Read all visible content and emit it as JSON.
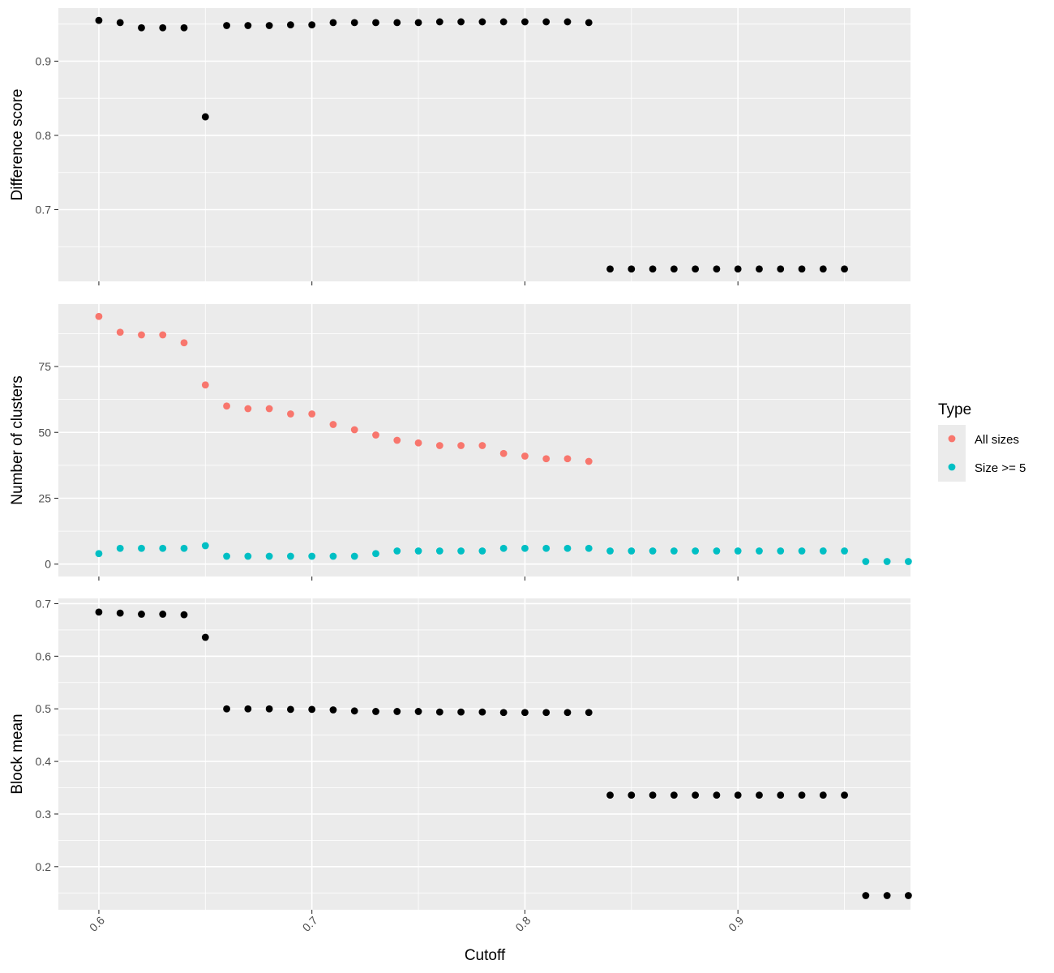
{
  "chart_data": {
    "type": "scatter",
    "x_label": "Cutoff",
    "x_ticks": [
      "0.6",
      "0.7",
      "0.8",
      "0.9"
    ],
    "x_range": [
      0.581,
      0.981
    ],
    "legend": {
      "title": "Type",
      "position": "right",
      "entries": [
        {
          "label": "All sizes",
          "color": "#F8766D"
        },
        {
          "label": "Size >= 5",
          "color": "#00BFC4"
        }
      ]
    },
    "panels": [
      {
        "y_label": "Difference score",
        "y_range": [
          0.6033,
          0.9715
        ],
        "y_ticks": [
          "0.7",
          "0.8",
          "0.9"
        ],
        "series": [
          {
            "color": "#000000",
            "x": [
              0.6,
              0.61,
              0.62,
              0.63,
              0.64,
              0.65,
              0.66,
              0.67,
              0.68,
              0.69,
              0.7,
              0.71,
              0.72,
              0.73,
              0.74,
              0.75,
              0.76,
              0.77,
              0.78,
              0.79,
              0.8,
              0.81,
              0.82,
              0.83,
              0.84,
              0.85,
              0.86,
              0.87,
              0.88,
              0.89,
              0.9,
              0.91,
              0.92,
              0.93,
              0.94,
              0.95
            ],
            "y": [
              0.955,
              0.952,
              0.945,
              0.945,
              0.945,
              0.825,
              0.948,
              0.948,
              0.948,
              0.949,
              0.949,
              0.952,
              0.952,
              0.952,
              0.952,
              0.952,
              0.953,
              0.953,
              0.953,
              0.953,
              0.953,
              0.953,
              0.953,
              0.952,
              0.62,
              0.62,
              0.62,
              0.62,
              0.62,
              0.62,
              0.62,
              0.62,
              0.62,
              0.62,
              0.62,
              0.62
            ]
          }
        ]
      },
      {
        "y_label": "Number of clusters",
        "y_range": [
          -4.7,
          98.7
        ],
        "y_ticks": [
          "0",
          "25",
          "50",
          "75"
        ],
        "series": [
          {
            "name": "All sizes",
            "color": "#F8766D",
            "x": [
              0.6,
              0.61,
              0.62,
              0.63,
              0.64,
              0.65,
              0.66,
              0.67,
              0.68,
              0.69,
              0.7,
              0.71,
              0.72,
              0.73,
              0.74,
              0.75,
              0.76,
              0.77,
              0.78,
              0.79,
              0.8,
              0.81,
              0.82,
              0.83
            ],
            "y": [
              94,
              88,
              87,
              87,
              84,
              68,
              60,
              59,
              59,
              57,
              57,
              53,
              51,
              49,
              47,
              46,
              45,
              45,
              45,
              42,
              41,
              40,
              40,
              39
            ]
          },
          {
            "name": "Size >= 5",
            "color": "#00BFC4",
            "x": [
              0.6,
              0.61,
              0.62,
              0.63,
              0.64,
              0.65,
              0.66,
              0.67,
              0.68,
              0.69,
              0.7,
              0.71,
              0.72,
              0.73,
              0.74,
              0.75,
              0.76,
              0.77,
              0.78,
              0.79,
              0.8,
              0.81,
              0.82,
              0.83,
              0.84,
              0.85,
              0.86,
              0.87,
              0.88,
              0.89,
              0.9,
              0.91,
              0.92,
              0.93,
              0.94,
              0.95,
              0.96,
              0.97,
              0.98
            ],
            "y": [
              4,
              6,
              6,
              6,
              6,
              7,
              3,
              3,
              3,
              3,
              3,
              3,
              3,
              4,
              5,
              5,
              5,
              5,
              5,
              6,
              6,
              6,
              6,
              6,
              5,
              5,
              5,
              5,
              5,
              5,
              5,
              5,
              5,
              5,
              5,
              5,
              1,
              1,
              1
            ]
          }
        ]
      },
      {
        "y_label": "Block mean",
        "y_range": [
          0.118,
          0.71
        ],
        "y_ticks": [
          "0.2",
          "0.3",
          "0.4",
          "0.5",
          "0.6",
          "0.7"
        ],
        "series": [
          {
            "color": "#000000",
            "x": [
              0.6,
              0.61,
              0.62,
              0.63,
              0.64,
              0.65,
              0.66,
              0.67,
              0.68,
              0.69,
              0.7,
              0.71,
              0.72,
              0.73,
              0.74,
              0.75,
              0.76,
              0.77,
              0.78,
              0.79,
              0.8,
              0.81,
              0.82,
              0.83,
              0.84,
              0.85,
              0.86,
              0.87,
              0.88,
              0.89,
              0.9,
              0.91,
              0.92,
              0.93,
              0.94,
              0.95,
              0.96,
              0.97,
              0.98
            ],
            "y": [
              0.684,
              0.682,
              0.68,
              0.68,
              0.679,
              0.636,
              0.5,
              0.5,
              0.5,
              0.499,
              0.499,
              0.498,
              0.496,
              0.495,
              0.495,
              0.495,
              0.494,
              0.494,
              0.494,
              0.493,
              0.493,
              0.493,
              0.493,
              0.493,
              0.336,
              0.336,
              0.336,
              0.336,
              0.336,
              0.336,
              0.336,
              0.336,
              0.336,
              0.336,
              0.336,
              0.336,
              0.145,
              0.145,
              0.145
            ]
          }
        ]
      }
    ]
  }
}
